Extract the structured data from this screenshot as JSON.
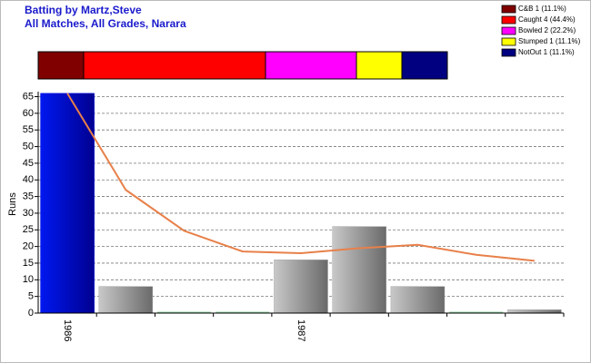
{
  "chart_data": [
    {
      "type": "stacked-bar",
      "title": "Batting by Martz,Steve",
      "subtitle": "All Matches, All Grades, Narara",
      "series": [
        {
          "name": "C&B 1 (11.1%)",
          "color": "#800000",
          "values": [
            1
          ]
        },
        {
          "name": "Caught 4 (44.4%)",
          "color": "#ff0000",
          "values": [
            4
          ]
        },
        {
          "name": "Bowled 2 (22.2%)",
          "color": "#ff00ff",
          "values": [
            2
          ]
        },
        {
          "name": "Stumped 1 (11.1%)",
          "color": "#ffff00",
          "values": [
            1
          ]
        },
        {
          "name": "NotOut 1 (11.1%)",
          "color": "#000080",
          "values": [
            1
          ]
        }
      ]
    },
    {
      "type": "bar-line",
      "ylabel": "Runs",
      "categories": [
        "1986",
        null,
        null,
        null,
        "1987",
        null,
        null,
        null,
        null
      ],
      "ylim": [
        0,
        66.5
      ],
      "yticks": [
        0,
        5,
        10,
        15,
        20,
        25,
        30,
        35,
        40,
        45,
        50,
        55,
        60,
        65
      ],
      "grid": true,
      "series": [
        {
          "type": "bar",
          "colors": [
            "#0010e0",
            "#a8a8a8",
            "#a8a8a8",
            "#a8a8a8",
            "#a8a8a8",
            "#a8a8a8",
            "#a8a8a8",
            "#a8a8a8",
            "#a8a8a8"
          ],
          "values": [
            66,
            8,
            0,
            0,
            16,
            26,
            8,
            0,
            1
          ]
        },
        {
          "type": "line",
          "color": "#e8804a",
          "values": [
            66,
            37,
            24.7,
            18.5,
            18,
            19.5,
            20.5,
            17.5,
            15.7
          ]
        }
      ]
    }
  ]
}
